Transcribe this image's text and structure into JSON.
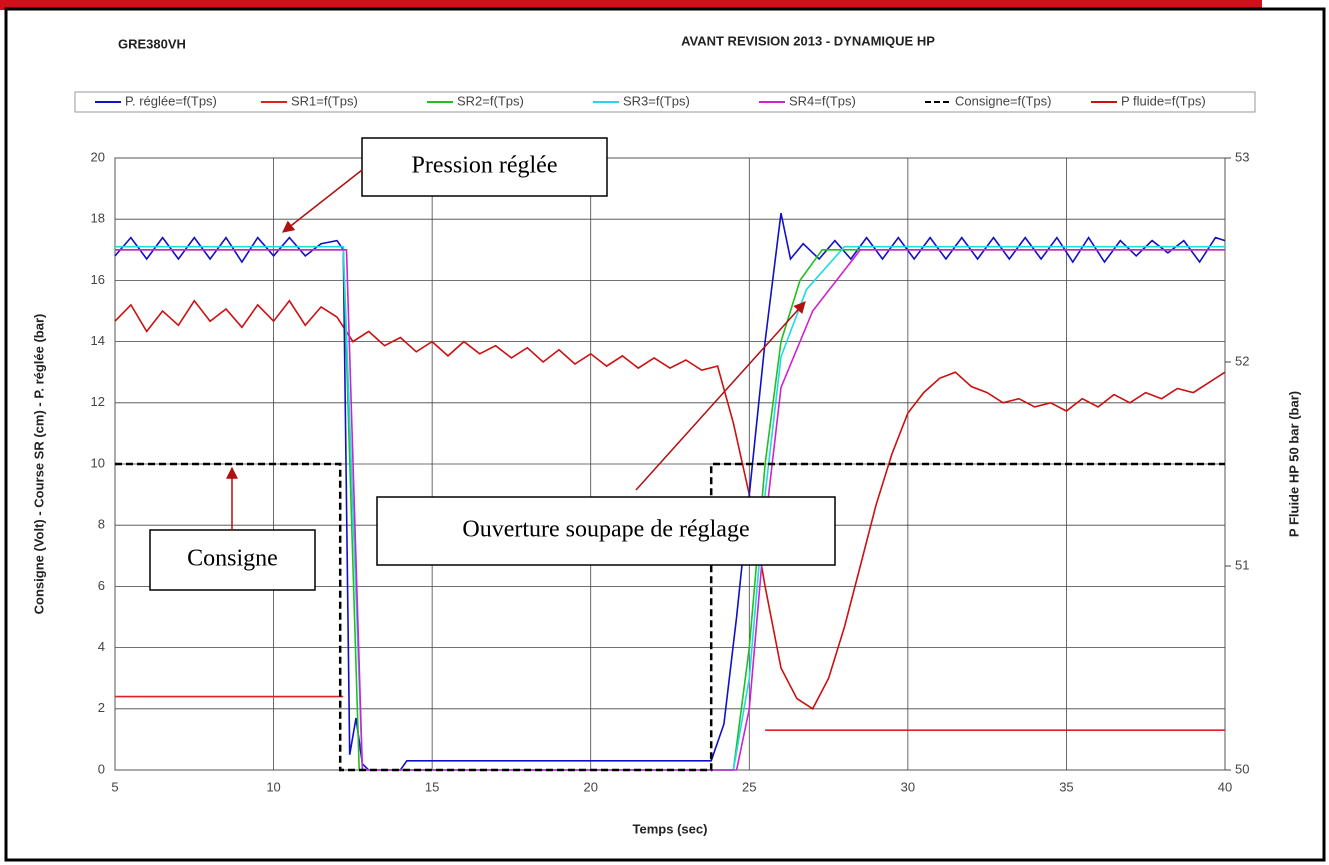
{
  "chart_data": {
    "type": "line",
    "subtitle": "GRE380VH",
    "title": "AVANT REVISION 2013 - DYNAMIQUE HP",
    "x_label": "Temps (sec)",
    "y_label": "Consigne (Volt) - Course SR (cm) - P. réglée (bar)",
    "y2_label": "P Fluide HP 50 bar (bar)",
    "xlim": [
      5,
      40
    ],
    "xticks": [
      5,
      10,
      15,
      20,
      25,
      30,
      35,
      40
    ],
    "ylim": [
      0,
      20
    ],
    "yticks": [
      0,
      2,
      4,
      6,
      8,
      10,
      12,
      14,
      16,
      18,
      20
    ],
    "y2lim": [
      50,
      53
    ],
    "y2ticks": [
      50,
      51,
      52,
      53
    ],
    "grid": true,
    "legend": "top",
    "annotations": [
      "Pression réglée",
      "Consigne",
      "Ouverture soupape de réglage"
    ],
    "series": [
      {
        "name": "P. réglée=f(Tps)",
        "color": "#1010c8",
        "style": "solid",
        "x": [
          5,
          5.5,
          6,
          6.5,
          7,
          7.5,
          8,
          8.5,
          9,
          9.5,
          10,
          10.5,
          11,
          11.5,
          12,
          12.2,
          12.4,
          12.6,
          12.8,
          13,
          14,
          14.2,
          23.8,
          24.2,
          24.6,
          25,
          25.5,
          26,
          26.3,
          26.7,
          27.2,
          27.7,
          28.2,
          28.7,
          29.2,
          29.7,
          30.2,
          30.7,
          31.2,
          31.7,
          32.2,
          32.7,
          33.2,
          33.7,
          34.2,
          34.7,
          35.2,
          35.7,
          36.2,
          36.7,
          37.2,
          37.7,
          38.2,
          38.7,
          39.2,
          39.7,
          40
        ],
        "values": [
          16.8,
          17.4,
          16.7,
          17.4,
          16.7,
          17.4,
          16.7,
          17.4,
          16.6,
          17.4,
          16.8,
          17.4,
          16.8,
          17.2,
          17.3,
          17,
          0.5,
          1.7,
          0.2,
          0,
          0,
          0.3,
          0.3,
          1.5,
          5,
          9,
          14,
          18.2,
          16.7,
          17.2,
          16.7,
          17.3,
          16.7,
          17.4,
          16.7,
          17.4,
          16.7,
          17.4,
          16.7,
          17.4,
          16.7,
          17.4,
          16.7,
          17.4,
          16.7,
          17.4,
          16.6,
          17.4,
          16.6,
          17.3,
          16.8,
          17.3,
          16.9,
          17.3,
          16.6,
          17.4,
          17.3
        ]
      },
      {
        "name": "SR1=f(Tps)",
        "color": "#e02020",
        "style": "solid",
        "x": [
          5,
          12.2,
          null,
          25.5,
          40
        ],
        "values": [
          2.4,
          2.4,
          null,
          1.3,
          1.3
        ]
      },
      {
        "name": "SR2=f(Tps)",
        "color": "#20c020",
        "style": "solid",
        "x": [
          5,
          12.2,
          12.7,
          24.5,
          25,
          25.5,
          26,
          26.6,
          27.3,
          40
        ],
        "values": [
          17,
          17,
          0,
          0,
          4,
          10,
          14,
          16,
          17,
          17
        ]
      },
      {
        "name": "SR3=f(Tps)",
        "color": "#20d8e8",
        "style": "solid",
        "x": [
          5,
          12.2,
          12.8,
          24.5,
          25,
          25.5,
          26,
          26.8,
          28,
          40
        ],
        "values": [
          17.1,
          17.1,
          0,
          0,
          3,
          9,
          13.5,
          15.7,
          17.1,
          17.1
        ]
      },
      {
        "name": "SR4=f(Tps)",
        "color": "#d020d0",
        "style": "solid",
        "x": [
          5,
          12.3,
          12.8,
          24.6,
          25,
          25.5,
          26,
          27,
          28.5,
          40
        ],
        "values": [
          17,
          17,
          0,
          0,
          2,
          8,
          12.5,
          15,
          17,
          17
        ]
      },
      {
        "name": "Consigne=f(Tps)",
        "color": "#000000",
        "style": "dashed",
        "x": [
          5,
          12.1,
          12.1,
          23.8,
          23.8,
          40
        ],
        "values": [
          10,
          10,
          0,
          0,
          10,
          10
        ]
      },
      {
        "name": "P fluide=f(Tps)",
        "color": "#cc1010",
        "style": "solid",
        "axis": "y2",
        "x": [
          5,
          5.5,
          6,
          6.5,
          7,
          7.5,
          8,
          8.5,
          9,
          9.5,
          10,
          10.5,
          11,
          11.5,
          12,
          12.5,
          13,
          13.5,
          14,
          14.5,
          15,
          15.5,
          16,
          16.5,
          17,
          17.5,
          18,
          18.5,
          19,
          19.5,
          20,
          20.5,
          21,
          21.5,
          22,
          22.5,
          23,
          23.5,
          24,
          24.5,
          25,
          25.5,
          26,
          26.5,
          27,
          27.5,
          28,
          28.5,
          29,
          29.5,
          30,
          30.5,
          31,
          31.5,
          32,
          32.5,
          33,
          33.5,
          34,
          34.5,
          35,
          35.5,
          36,
          36.5,
          37,
          37.5,
          38,
          38.5,
          39,
          39.5,
          40
        ],
        "values": [
          52.2,
          52.28,
          52.15,
          52.25,
          52.18,
          52.3,
          52.2,
          52.26,
          52.17,
          52.28,
          52.2,
          52.3,
          52.18,
          52.27,
          52.22,
          52.1,
          52.15,
          52.08,
          52.12,
          52.05,
          52.1,
          52.03,
          52.1,
          52.04,
          52.08,
          52.02,
          52.07,
          52.0,
          52.06,
          51.99,
          52.04,
          51.98,
          52.03,
          51.97,
          52.02,
          51.97,
          52.01,
          51.96,
          51.98,
          51.7,
          51.35,
          50.9,
          50.5,
          50.35,
          50.3,
          50.45,
          50.7,
          51.0,
          51.3,
          51.55,
          51.75,
          51.85,
          51.92,
          51.95,
          51.88,
          51.85,
          51.8,
          51.82,
          51.78,
          51.8,
          51.76,
          51.82,
          51.78,
          51.84,
          51.8,
          51.85,
          51.82,
          51.87,
          51.85,
          51.9,
          51.95
        ]
      }
    ]
  }
}
